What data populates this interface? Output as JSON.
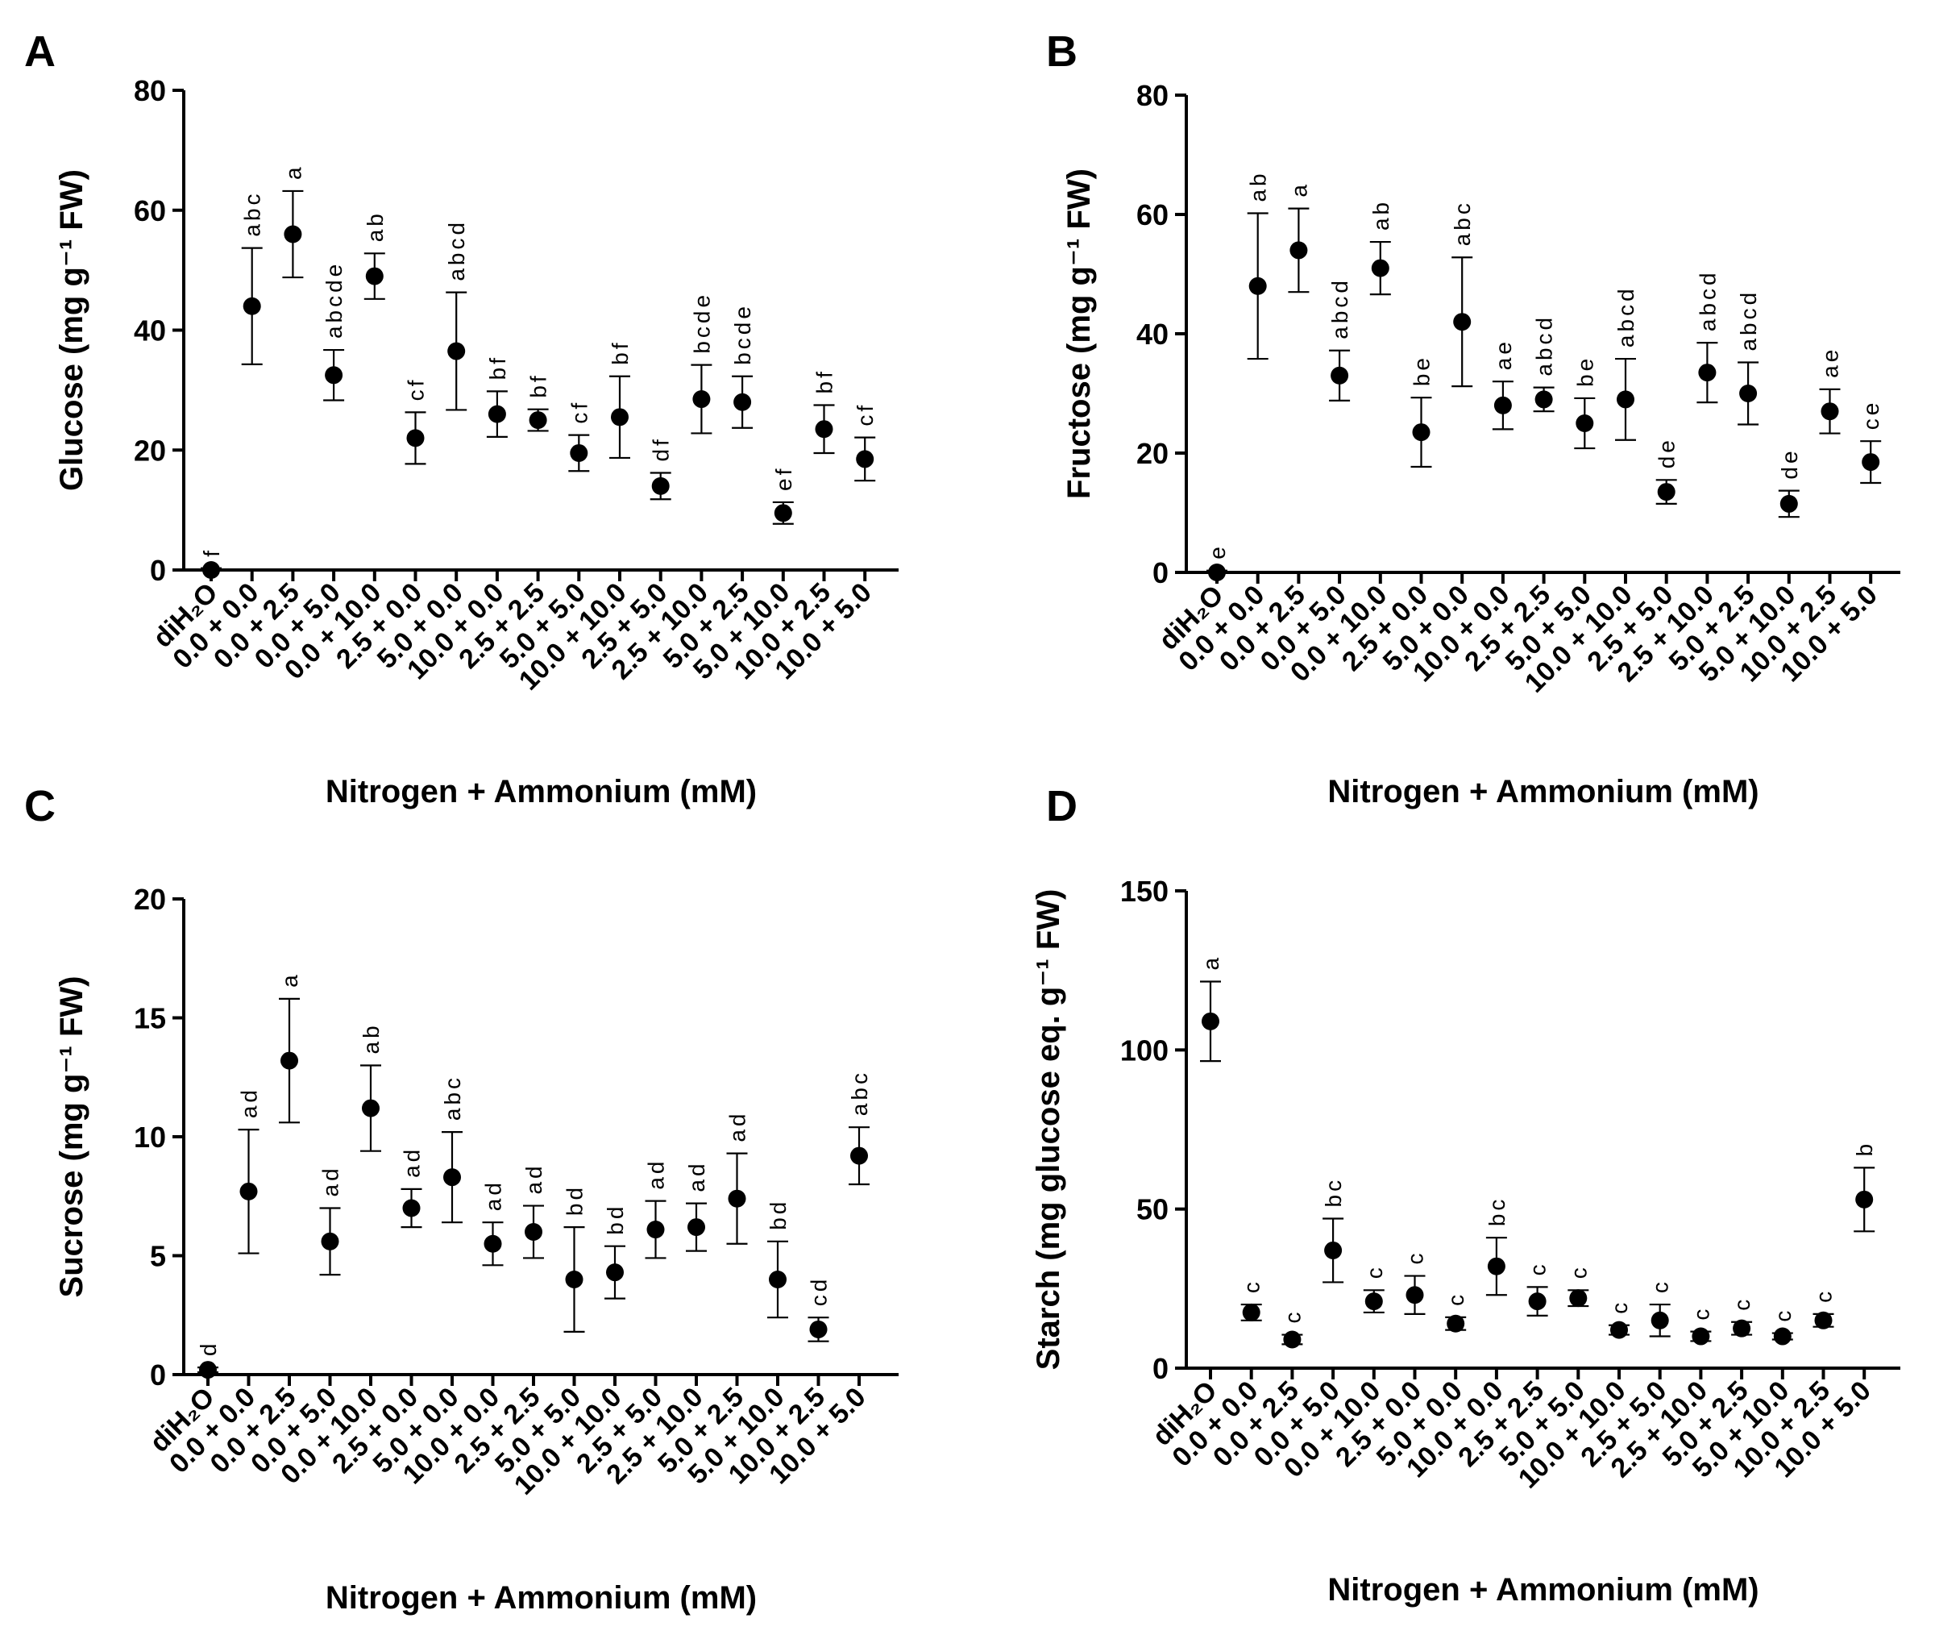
{
  "chart_data": [
    {
      "type": "scatter",
      "panel": "A",
      "ylabel": "Glucose (mg g⁻¹ FW)",
      "xlabel": "Nitrogen + Ammonium (mM)",
      "ylim": [
        0,
        80
      ],
      "yticks": [
        "0",
        "20",
        "40",
        "60",
        "80"
      ],
      "categories": [
        "diH₂O",
        "0.0 + 0.0",
        "0.0 + 2.5",
        "0.0 + 5.0",
        "0.0 + 10.0",
        "2.5 + 0.0",
        "5.0 + 0.0",
        "10.0 + 0.0",
        "2.5 + 2.5",
        "5.0 + 5.0",
        "10.0 + 10.0",
        "2.5 + 5.0",
        "2.5 + 10.0",
        "5.0 + 2.5",
        "5.0 + 10.0",
        "10.0 + 2.5",
        "10.0 + 5.0"
      ],
      "values": [
        0,
        44,
        56,
        32.5,
        49,
        22,
        36.5,
        26,
        25,
        19.5,
        25.5,
        14,
        28.5,
        28,
        9.5,
        23.5,
        18.5
      ],
      "errors": [
        0.3,
        9.7,
        7.2,
        4.2,
        3.8,
        4.3,
        9.8,
        3.8,
        1.8,
        3.0,
        6.8,
        2.2,
        5.7,
        4.3,
        1.8,
        4.0,
        3.6
      ],
      "letters": [
        "f",
        "abc",
        "a",
        "abcde",
        "ab",
        "cf",
        "abcd",
        "bf",
        "bf",
        "cf",
        "bf",
        "df",
        "bcde",
        "bcde",
        "ef",
        "bf",
        "cf"
      ]
    },
    {
      "type": "scatter",
      "panel": "B",
      "ylabel": "Fructose (mg g⁻¹ FW)",
      "xlabel": "Nitrogen + Ammonium (mM)",
      "ylim": [
        0,
        80
      ],
      "yticks": [
        "0",
        "20",
        "40",
        "60",
        "80"
      ],
      "categories": [
        "diH₂O",
        "0.0 + 0.0",
        "0.0 + 2.5",
        "0.0 + 5.0",
        "0.0 + 10.0",
        "2.5 + 0.0",
        "5.0 + 0.0",
        "10.0 + 0.0",
        "2.5 + 2.5",
        "5.0 + 5.0",
        "10.0 + 10.0",
        "2.5 + 5.0",
        "2.5 + 10.0",
        "5.0 + 2.5",
        "5.0 + 10.0",
        "10.0 + 2.5",
        "10.0 + 5.0"
      ],
      "values": [
        0,
        48,
        54,
        33,
        51,
        23.5,
        42,
        28,
        29,
        25,
        29,
        13.5,
        33.5,
        30,
        11.5,
        27,
        18.5
      ],
      "errors": [
        0.3,
        12.2,
        7.0,
        4.2,
        4.4,
        5.8,
        10.8,
        4.0,
        2.0,
        4.2,
        6.8,
        2.0,
        5.0,
        5.2,
        2.2,
        3.7,
        3.5
      ],
      "letters": [
        "e",
        "ab",
        "a",
        "abcd",
        "ab",
        "be",
        "abc",
        "ae",
        "abcd",
        "be",
        "abcd",
        "de",
        "abcd",
        "abcd",
        "de",
        "ae",
        "ce"
      ]
    },
    {
      "type": "scatter",
      "panel": "C",
      "ylabel": "Sucrose (mg g⁻¹ FW)",
      "xlabel": "Nitrogen + Ammonium (mM)",
      "ylim": [
        0,
        20
      ],
      "yticks": [
        "0",
        "5",
        "10",
        "15",
        "20"
      ],
      "categories": [
        "diH₂O",
        "0.0 + 0.0",
        "0.0 + 2.5",
        "0.0 + 5.0",
        "0.0 + 10.0",
        "2.5 + 0.0",
        "5.0 + 0.0",
        "10.0 + 0.0",
        "2.5 + 2.5",
        "5.0 + 5.0",
        "10.0 + 10.0",
        "2.5 + 5.0",
        "2.5 + 10.0",
        "5.0 + 2.5",
        "5.0 + 10.0",
        "10.0 + 2.5",
        "10.0 + 5.0"
      ],
      "values": [
        0.2,
        7.7,
        13.2,
        5.6,
        11.2,
        7.0,
        8.3,
        5.5,
        6.0,
        4.0,
        4.3,
        6.1,
        6.2,
        7.4,
        4.0,
        1.9,
        9.2
      ],
      "errors": [
        0.1,
        2.6,
        2.6,
        1.4,
        1.8,
        0.8,
        1.9,
        0.9,
        1.1,
        2.2,
        1.1,
        1.2,
        1.0,
        1.9,
        1.6,
        0.5,
        1.2
      ],
      "letters": [
        "d",
        "ad",
        "a",
        "ad",
        "ab",
        "ad",
        "abc",
        "ad",
        "ad",
        "bd",
        "bd",
        "ad",
        "ad",
        "ad",
        "bd",
        "cd",
        "abc"
      ]
    },
    {
      "type": "scatter",
      "panel": "D",
      "ylabel": "Starch (mg glucose eq. g⁻¹ FW)",
      "xlabel": "Nitrogen + Ammonium (mM)",
      "ylim": [
        0,
        150
      ],
      "yticks": [
        "0",
        "50",
        "100",
        "150"
      ],
      "categories": [
        "diH₂O",
        "0.0 + 0.0",
        "0.0 + 2.5",
        "0.0 + 5.0",
        "0.0 + 10.0",
        "2.5 + 0.0",
        "5.0 + 0.0",
        "10.0 + 0.0",
        "2.5 + 2.5",
        "5.0 + 5.0",
        "10.0 + 10.0",
        "2.5 + 5.0",
        "2.5 + 10.0",
        "5.0 + 2.5",
        "5.0 + 10.0",
        "10.0 + 2.5",
        "10.0 + 5.0"
      ],
      "values": [
        109,
        17.5,
        9,
        37,
        21,
        23,
        14,
        32,
        21,
        22,
        12,
        15,
        10,
        12.5,
        10,
        15,
        53
      ],
      "errors": [
        12.5,
        2.5,
        1.5,
        10.0,
        3.5,
        6.0,
        2.0,
        9.0,
        4.5,
        2.5,
        1.5,
        5.0,
        1.5,
        2.0,
        1.0,
        2.0,
        10.0
      ],
      "letters": [
        "a",
        "c",
        "c",
        "bc",
        "c",
        "c",
        "c",
        "bc",
        "c",
        "c",
        "c",
        "c",
        "c",
        "c",
        "c",
        "c",
        "b"
      ]
    }
  ]
}
